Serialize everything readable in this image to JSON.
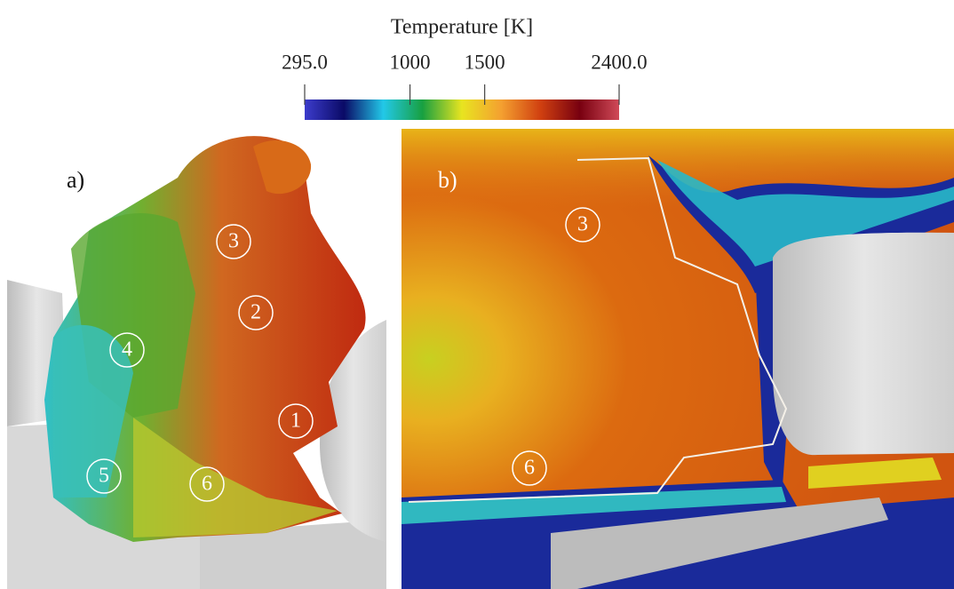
{
  "colorbar": {
    "title": "Temperature [K]",
    "range": [
      295,
      2400
    ],
    "ticks": [
      {
        "value": 295,
        "label": "295.0"
      },
      1000,
      1500,
      {
        "value": 2400,
        "label": "2400.0"
      }
    ],
    "colors": [
      "#3c3ccc",
      "#0a0a66",
      "#22c8e8",
      "#18a040",
      "#e8e420",
      "#f4a030",
      "#d04010",
      "#780010",
      "#d04a58"
    ]
  },
  "panels": [
    {
      "label": "a)",
      "markers": [
        "3",
        "2",
        "4",
        "1",
        "5",
        "6"
      ]
    },
    {
      "label": "b)",
      "markers": [
        "3",
        "6"
      ]
    }
  ]
}
